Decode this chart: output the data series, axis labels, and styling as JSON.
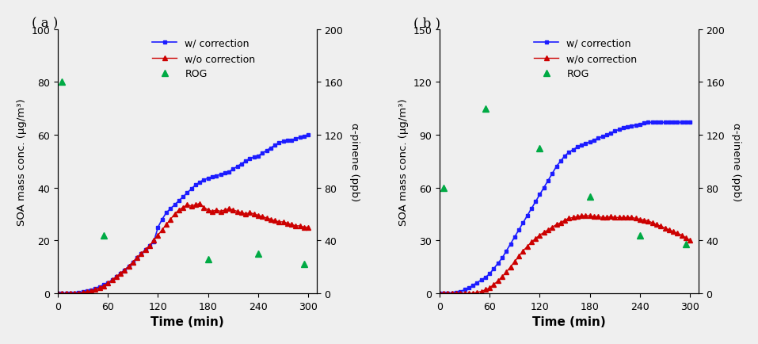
{
  "panel_a": {
    "title": "( a )",
    "ylim_left": [
      0,
      100
    ],
    "ylim_right": [
      0,
      200
    ],
    "yticks_left": [
      0,
      20,
      40,
      60,
      80,
      100
    ],
    "yticks_right": [
      0,
      40,
      80,
      120,
      160,
      200
    ],
    "xlim": [
      0,
      310
    ],
    "xticks": [
      0,
      60,
      120,
      180,
      240,
      300
    ],
    "blue_x": [
      0,
      5,
      10,
      15,
      20,
      25,
      30,
      35,
      40,
      45,
      50,
      55,
      60,
      65,
      70,
      75,
      80,
      85,
      90,
      95,
      100,
      105,
      110,
      115,
      120,
      125,
      130,
      135,
      140,
      145,
      150,
      155,
      160,
      165,
      170,
      175,
      180,
      185,
      190,
      195,
      200,
      205,
      210,
      215,
      220,
      225,
      230,
      235,
      240,
      245,
      250,
      255,
      260,
      265,
      270,
      275,
      280,
      285,
      290,
      295,
      300
    ],
    "blue_y": [
      0,
      0,
      0,
      0,
      0,
      0.2,
      0.5,
      0.8,
      1.2,
      1.8,
      2.5,
      3.2,
      4.0,
      5.0,
      6.2,
      7.5,
      8.8,
      10.2,
      11.8,
      13.5,
      15.0,
      16.5,
      18.0,
      19.5,
      25.0,
      28.0,
      30.5,
      32.0,
      33.5,
      35.0,
      36.5,
      38.0,
      39.5,
      41.0,
      42.0,
      43.0,
      43.5,
      44.0,
      44.5,
      45.0,
      45.5,
      46.0,
      47.0,
      48.0,
      49.0,
      50.0,
      51.0,
      51.5,
      52.0,
      53.0,
      54.0,
      55.0,
      56.0,
      57.0,
      57.5,
      57.8,
      58.0,
      58.5,
      59.0,
      59.5,
      60.0
    ],
    "red_x": [
      0,
      5,
      10,
      15,
      20,
      25,
      30,
      35,
      40,
      45,
      50,
      55,
      60,
      65,
      70,
      75,
      80,
      85,
      90,
      95,
      100,
      105,
      110,
      115,
      120,
      125,
      130,
      135,
      140,
      145,
      150,
      155,
      160,
      165,
      170,
      175,
      180,
      185,
      190,
      195,
      200,
      205,
      210,
      215,
      220,
      225,
      230,
      235,
      240,
      245,
      250,
      255,
      260,
      265,
      270,
      275,
      280,
      285,
      290,
      295,
      300
    ],
    "red_y": [
      0,
      0,
      0,
      0,
      0,
      0.1,
      0.3,
      0.6,
      0.9,
      1.4,
      2.0,
      2.8,
      3.8,
      5.0,
      6.2,
      7.5,
      8.8,
      10.2,
      11.8,
      13.5,
      15.0,
      16.5,
      18.0,
      20.0,
      22.0,
      24.0,
      26.0,
      28.0,
      30.0,
      31.5,
      32.5,
      33.5,
      33.0,
      33.5,
      34.0,
      32.5,
      31.5,
      31.0,
      31.5,
      31.0,
      31.5,
      32.0,
      31.5,
      31.0,
      30.5,
      30.0,
      30.5,
      30.0,
      29.5,
      29.0,
      28.5,
      28.0,
      27.5,
      27.0,
      27.0,
      26.5,
      26.0,
      25.5,
      25.5,
      25.0,
      25.0
    ],
    "green_x": [
      5,
      55,
      180,
      240,
      295
    ],
    "green_y_right": [
      160,
      44,
      26,
      30,
      22
    ],
    "xlabel": "Time (min)",
    "ylabel_left": "SOA mass conc. (μg/m³)",
    "ylabel_right": "α-pinene (ppb)"
  },
  "panel_b": {
    "title": "( b )",
    "ylim_left": [
      0,
      150
    ],
    "ylim_right": [
      0,
      200
    ],
    "yticks_left": [
      0,
      30,
      60,
      90,
      120,
      150
    ],
    "yticks_right": [
      0,
      40,
      80,
      120,
      160,
      200
    ],
    "xlim": [
      0,
      310
    ],
    "xticks": [
      0,
      60,
      120,
      180,
      240,
      300
    ],
    "blue_x": [
      0,
      5,
      10,
      15,
      20,
      25,
      30,
      35,
      40,
      45,
      50,
      55,
      60,
      65,
      70,
      75,
      80,
      85,
      90,
      95,
      100,
      105,
      110,
      115,
      120,
      125,
      130,
      135,
      140,
      145,
      150,
      155,
      160,
      165,
      170,
      175,
      180,
      185,
      190,
      195,
      200,
      205,
      210,
      215,
      220,
      225,
      230,
      235,
      240,
      245,
      250,
      255,
      260,
      265,
      270,
      275,
      280,
      285,
      290,
      295,
      300
    ],
    "blue_y": [
      0,
      0,
      0,
      0,
      0.5,
      1.0,
      2.0,
      3.0,
      4.5,
      6.0,
      7.5,
      9.0,
      11.0,
      14.0,
      17.0,
      20.0,
      24.0,
      28.0,
      32.0,
      36.0,
      40.0,
      44.0,
      48.0,
      52.0,
      56.0,
      60.0,
      64.0,
      68.0,
      72.0,
      75.0,
      78.0,
      80.0,
      81.5,
      83.0,
      84.0,
      85.0,
      86.0,
      87.0,
      88.0,
      89.0,
      90.0,
      91.0,
      92.0,
      93.0,
      94.0,
      94.5,
      95.0,
      95.5,
      96.0,
      96.5,
      97.0,
      97.0,
      97.0,
      97.0,
      97.0,
      97.0,
      97.0,
      97.0,
      97.0,
      97.0,
      97.0
    ],
    "red_x": [
      0,
      5,
      10,
      15,
      20,
      25,
      30,
      35,
      40,
      45,
      50,
      55,
      60,
      65,
      70,
      75,
      80,
      85,
      90,
      95,
      100,
      105,
      110,
      115,
      120,
      125,
      130,
      135,
      140,
      145,
      150,
      155,
      160,
      165,
      170,
      175,
      180,
      185,
      190,
      195,
      200,
      205,
      210,
      215,
      220,
      225,
      230,
      235,
      240,
      245,
      250,
      255,
      260,
      265,
      270,
      275,
      280,
      285,
      290,
      295,
      300
    ],
    "red_y": [
      0,
      0,
      0,
      0,
      0,
      0,
      0,
      0,
      0,
      0.5,
      1.0,
      2.0,
      3.0,
      5.0,
      7.0,
      9.5,
      12.0,
      15.0,
      18.0,
      21.0,
      24.0,
      26.5,
      29.0,
      31.0,
      33.0,
      34.5,
      36.0,
      37.5,
      39.0,
      40.0,
      41.5,
      42.5,
      43.0,
      43.5,
      44.0,
      44.0,
      44.0,
      43.5,
      43.5,
      43.0,
      43.0,
      43.5,
      43.0,
      43.0,
      43.0,
      43.0,
      43.0,
      42.5,
      42.0,
      41.5,
      41.0,
      40.0,
      39.0,
      38.0,
      37.0,
      36.0,
      35.0,
      34.0,
      33.0,
      31.5,
      30.0
    ],
    "green_x": [
      5,
      55,
      120,
      180,
      240,
      295
    ],
    "green_y_right": [
      80,
      140,
      110,
      73,
      44,
      37
    ],
    "xlabel": "Time (min)",
    "ylabel_left": "SOA mass conc. (μg/m³)",
    "ylabel_right": "α-pinene (ppb)"
  },
  "legend_labels": [
    "w/ correction",
    "w/o correction",
    "ROG"
  ],
  "blue_color": "#1C1CFF",
  "red_color": "#CC0000",
  "green_color": "#00AA44",
  "background_color": "#efefef"
}
